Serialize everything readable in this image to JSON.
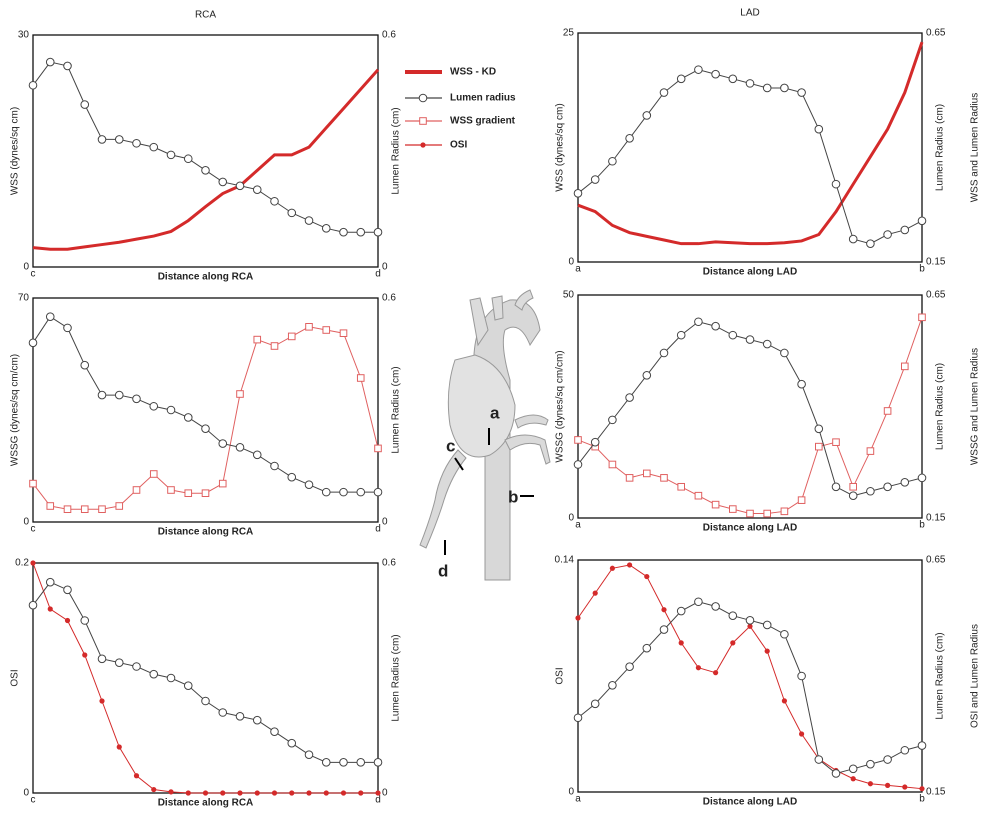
{
  "chart_data": [
    {
      "type": "line",
      "title": "RCA",
      "xlabel": "Distance along RCA",
      "ylabel": "WSS (dynes/sq cm)",
      "y2label": "Lumen Radius (cm)",
      "x": [
        0,
        0.05,
        0.1,
        0.15,
        0.2,
        0.25,
        0.3,
        0.35,
        0.4,
        0.45,
        0.5,
        0.55,
        0.6,
        0.65,
        0.7,
        0.75,
        0.8,
        0.85,
        0.9,
        0.95,
        1
      ],
      "xlim": [
        0,
        1
      ],
      "xticks": [
        {
          "value": 0,
          "label": "c"
        },
        {
          "value": 1,
          "label": "d"
        }
      ],
      "ylim": [
        0,
        30
      ],
      "yticks": [
        0,
        30
      ],
      "y2lim": [
        0,
        0.6
      ],
      "y2ticks": [
        0,
        0.6
      ],
      "series": [
        {
          "name": "WSS - KD",
          "color": "#d42a2a",
          "marker": "none",
          "values": [
            2.5,
            2.3,
            2.3,
            2.6,
            2.9,
            3.2,
            3.6,
            4.0,
            4.6,
            6.0,
            7.8,
            9.5,
            10.5,
            12.5,
            14.5,
            14.5,
            15.5,
            18.0,
            20.5,
            23.0,
            25.5
          ]
        },
        {
          "name": "Lumen radius",
          "color": "#444444",
          "marker": "circle",
          "axis": "y2",
          "values": [
            0.47,
            0.53,
            0.52,
            0.42,
            0.33,
            0.33,
            0.32,
            0.31,
            0.29,
            0.28,
            0.25,
            0.22,
            0.21,
            0.2,
            0.17,
            0.14,
            0.12,
            0.1,
            0.09,
            0.09,
            0.09
          ]
        }
      ]
    },
    {
      "type": "line",
      "xlabel": "Distance along RCA",
      "ylabel": "WSSG (dynes/sq cm/cm)",
      "y2label": "Lumen Radius (cm)",
      "x": [
        0,
        0.05,
        0.1,
        0.15,
        0.2,
        0.25,
        0.3,
        0.35,
        0.4,
        0.45,
        0.5,
        0.55,
        0.6,
        0.65,
        0.7,
        0.75,
        0.8,
        0.85,
        0.9,
        0.95,
        1
      ],
      "xlim": [
        0,
        1
      ],
      "xticks": [
        {
          "value": 0,
          "label": "c"
        },
        {
          "value": 1,
          "label": "d"
        }
      ],
      "ylim": [
        0,
        70
      ],
      "yticks": [
        0,
        70
      ],
      "y2lim": [
        0,
        0.6
      ],
      "y2ticks": [
        0,
        0.6
      ],
      "series": [
        {
          "name": "WSS gradient",
          "color": "#e06060",
          "marker": "square",
          "values": [
            12,
            5,
            4,
            4,
            4,
            5,
            10,
            15,
            10,
            9,
            9,
            12,
            40,
            57,
            55,
            58,
            61,
            60,
            59,
            45,
            23
          ]
        },
        {
          "name": "Lumen radius",
          "color": "#444444",
          "marker": "circle",
          "axis": "y2",
          "values": [
            0.48,
            0.55,
            0.52,
            0.42,
            0.34,
            0.34,
            0.33,
            0.31,
            0.3,
            0.28,
            0.25,
            0.21,
            0.2,
            0.18,
            0.15,
            0.12,
            0.1,
            0.08,
            0.08,
            0.08,
            0.08
          ]
        }
      ]
    },
    {
      "type": "line",
      "xlabel": "Distance along RCA",
      "ylabel": "OSI",
      "y2label": "Lumen Radius (cm)",
      "x": [
        0,
        0.05,
        0.1,
        0.15,
        0.2,
        0.25,
        0.3,
        0.35,
        0.4,
        0.45,
        0.5,
        0.55,
        0.6,
        0.65,
        0.7,
        0.75,
        0.8,
        0.85,
        0.9,
        0.95,
        1
      ],
      "xlim": [
        0,
        1
      ],
      "xticks": [
        {
          "value": 0,
          "label": "c"
        },
        {
          "value": 1,
          "label": "d"
        }
      ],
      "ylim": [
        0,
        0.2
      ],
      "yticks": [
        0,
        0.2
      ],
      "y2lim": [
        0,
        0.6
      ],
      "y2ticks": [
        0,
        0.6
      ],
      "series": [
        {
          "name": "OSI",
          "color": "#d42a2a",
          "marker": "dot",
          "values": [
            0.2,
            0.16,
            0.15,
            0.12,
            0.08,
            0.04,
            0.015,
            0.003,
            0.001,
            0,
            0,
            0,
            0,
            0,
            0,
            0,
            0,
            0,
            0,
            0,
            0
          ]
        },
        {
          "name": "Lumen radius",
          "color": "#444444",
          "marker": "circle",
          "axis": "y2",
          "values": [
            0.49,
            0.55,
            0.53,
            0.45,
            0.35,
            0.34,
            0.33,
            0.31,
            0.3,
            0.28,
            0.24,
            0.21,
            0.2,
            0.19,
            0.16,
            0.13,
            0.1,
            0.08,
            0.08,
            0.08,
            0.08
          ]
        }
      ]
    },
    {
      "type": "line",
      "title": "LAD",
      "xlabel": "Distance along LAD",
      "ylabel": "WSS (dynes/sq cm)",
      "y2label": "Lumen Radius (cm)",
      "side_label": "WSS and Lumen Radius",
      "x": [
        0,
        0.05,
        0.1,
        0.15,
        0.2,
        0.25,
        0.3,
        0.35,
        0.4,
        0.45,
        0.5,
        0.55,
        0.6,
        0.65,
        0.7,
        0.75,
        0.8,
        0.85,
        0.9,
        0.95,
        1
      ],
      "xlim": [
        0,
        1
      ],
      "xticks": [
        {
          "value": 0,
          "label": "a"
        },
        {
          "value": 1,
          "label": "b"
        }
      ],
      "ylim": [
        0,
        25
      ],
      "yticks": [
        0,
        25
      ],
      "y2lim": [
        0.15,
        0.65
      ],
      "y2ticks": [
        0.15,
        0.65
      ],
      "series": [
        {
          "name": "WSS - KD",
          "color": "#d42a2a",
          "marker": "none",
          "values": [
            6.2,
            5.5,
            4.0,
            3.2,
            2.8,
            2.4,
            2.0,
            2.0,
            2.2,
            2.1,
            2.0,
            2.0,
            2.1,
            2.3,
            3.0,
            5.5,
            8.5,
            11.5,
            14.5,
            18.5,
            24
          ]
        },
        {
          "name": "Lumen radius",
          "color": "#444444",
          "marker": "circle",
          "axis": "y2",
          "values": [
            0.3,
            0.33,
            0.37,
            0.42,
            0.47,
            0.52,
            0.55,
            0.57,
            0.56,
            0.55,
            0.54,
            0.53,
            0.53,
            0.52,
            0.44,
            0.32,
            0.2,
            0.19,
            0.21,
            0.22,
            0.24
          ]
        }
      ]
    },
    {
      "type": "line",
      "xlabel": "Distance along LAD",
      "ylabel": "WSSG (dynes/sq cm/cm)",
      "y2label": "Lumen Radius (cm)",
      "side_label": "WSSG and Lumen Radius",
      "x": [
        0,
        0.05,
        0.1,
        0.15,
        0.2,
        0.25,
        0.3,
        0.35,
        0.4,
        0.45,
        0.5,
        0.55,
        0.6,
        0.65,
        0.7,
        0.75,
        0.8,
        0.85,
        0.9,
        0.95,
        1
      ],
      "xlim": [
        0,
        1
      ],
      "xticks": [
        {
          "value": 0,
          "label": "a"
        },
        {
          "value": 1,
          "label": "b"
        }
      ],
      "ylim": [
        0,
        50
      ],
      "yticks": [
        0,
        50
      ],
      "y2lim": [
        0.15,
        0.65
      ],
      "y2ticks": [
        0.15,
        0.65
      ],
      "series": [
        {
          "name": "WSS gradient",
          "color": "#e06060",
          "marker": "square",
          "values": [
            17.5,
            16,
            12,
            9,
            10,
            9,
            7,
            5,
            3,
            2,
            1,
            1,
            1.5,
            4,
            16,
            17,
            7,
            15,
            24,
            34,
            45
          ]
        },
        {
          "name": "Lumen radius",
          "color": "#444444",
          "marker": "circle",
          "axis": "y2",
          "values": [
            0.27,
            0.32,
            0.37,
            0.42,
            0.47,
            0.52,
            0.56,
            0.59,
            0.58,
            0.56,
            0.55,
            0.54,
            0.52,
            0.45,
            0.35,
            0.22,
            0.2,
            0.21,
            0.22,
            0.23,
            0.24
          ]
        }
      ]
    },
    {
      "type": "line",
      "xlabel": "Distance along LAD",
      "ylabel": "OSI",
      "y2label": "Lumen Radius (cm)",
      "side_label": "OSI and Lumen Radius",
      "x": [
        0,
        0.05,
        0.1,
        0.15,
        0.2,
        0.25,
        0.3,
        0.35,
        0.4,
        0.45,
        0.5,
        0.55,
        0.6,
        0.65,
        0.7,
        0.75,
        0.8,
        0.85,
        0.9,
        0.95,
        1
      ],
      "xlim": [
        0,
        1
      ],
      "xticks": [
        {
          "value": 0,
          "label": "a"
        },
        {
          "value": 1,
          "label": "b"
        }
      ],
      "ylim": [
        0,
        0.14
      ],
      "yticks": [
        0,
        0.14
      ],
      "y2lim": [
        0.15,
        0.65
      ],
      "y2ticks": [
        0.15,
        0.65
      ],
      "series": [
        {
          "name": "OSI",
          "color": "#d42a2a",
          "marker": "dot",
          "values": [
            0.105,
            0.12,
            0.135,
            0.137,
            0.13,
            0.11,
            0.09,
            0.075,
            0.072,
            0.09,
            0.1,
            0.085,
            0.055,
            0.035,
            0.02,
            0.013,
            0.008,
            0.005,
            0.004,
            0.003,
            0.002
          ]
        },
        {
          "name": "Lumen radius",
          "color": "#444444",
          "marker": "circle",
          "axis": "y2",
          "values": [
            0.31,
            0.34,
            0.38,
            0.42,
            0.46,
            0.5,
            0.54,
            0.56,
            0.55,
            0.53,
            0.52,
            0.51,
            0.49,
            0.4,
            0.22,
            0.19,
            0.2,
            0.21,
            0.22,
            0.24,
            0.25
          ]
        }
      ]
    }
  ],
  "anatomy_labels": [
    "a",
    "b",
    "c",
    "d"
  ]
}
